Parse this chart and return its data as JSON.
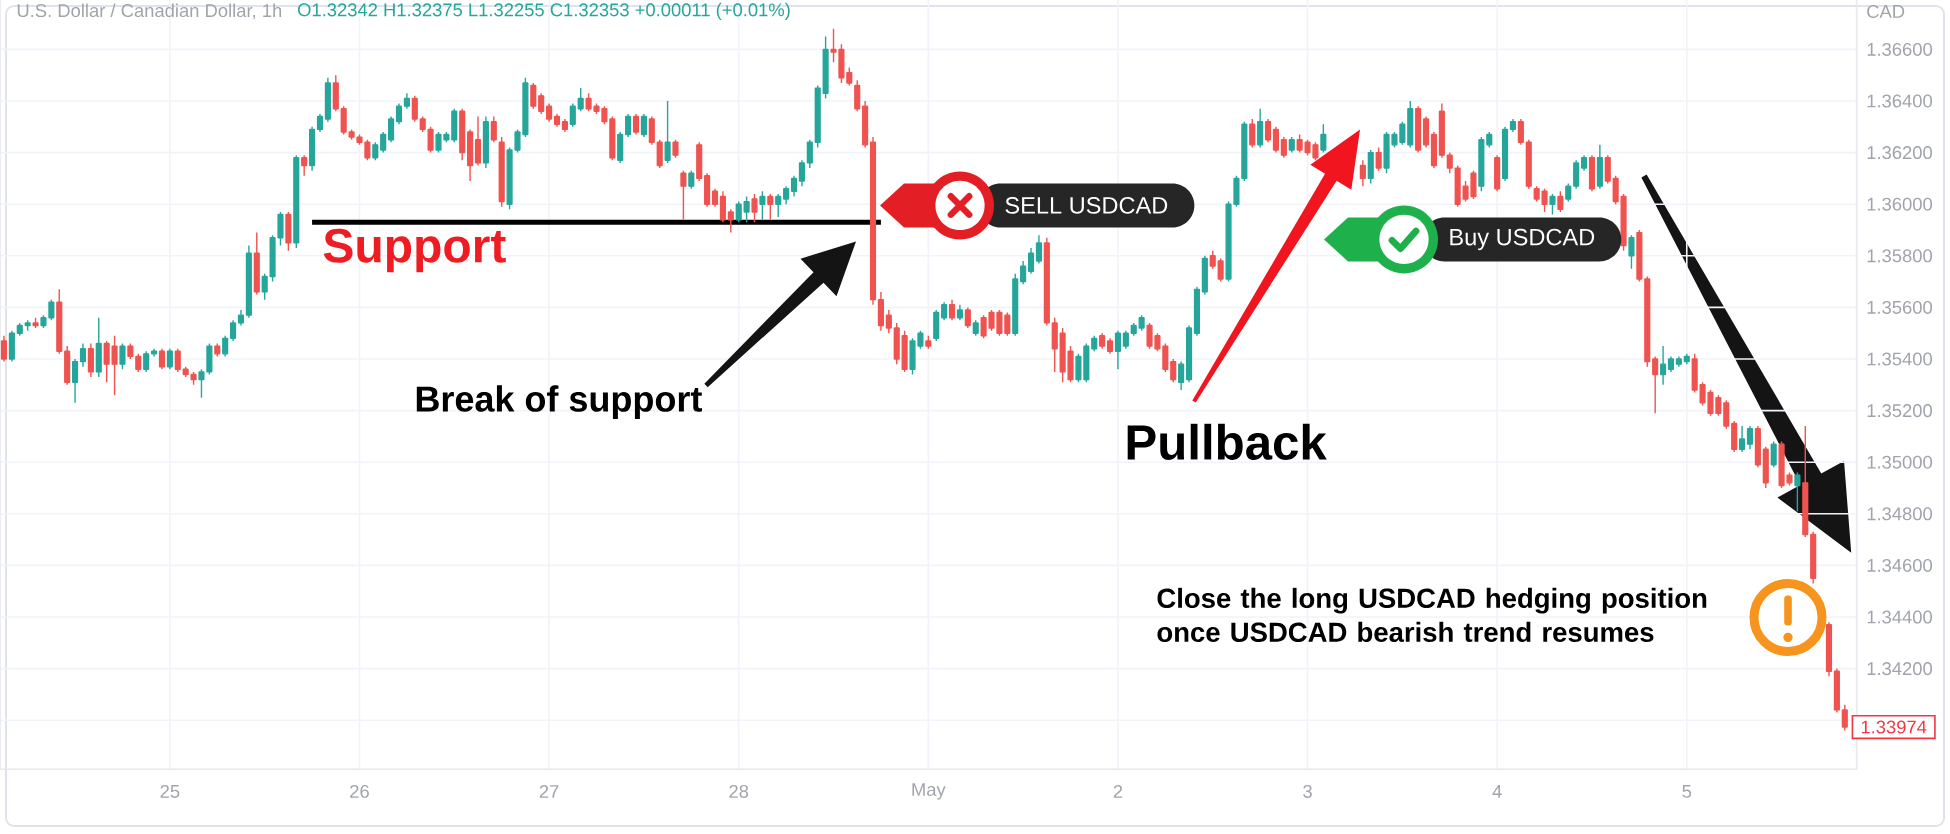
{
  "chart_data": {
    "type": "candlestick",
    "title": "U.S. Dollar / Canadian Dollar, 1h",
    "subtitle": "O1.32342 H1.32375 L1.32255 C1.32353 +0.00011 (+0.01%)",
    "ylabel": "CAD",
    "categories": [
      null,
      null,
      null,
      null,
      null,
      null,
      null,
      null,
      null,
      null,
      null,
      null,
      null,
      null,
      null,
      null,
      null,
      null,
      null,
      null,
      null,
      "25",
      null,
      null,
      null,
      null,
      null,
      null,
      null,
      null,
      null,
      null,
      null,
      null,
      null,
      null,
      null,
      null,
      null,
      null,
      null,
      null,
      null,
      null,
      null,
      "26",
      null,
      null,
      null,
      null,
      null,
      null,
      null,
      null,
      null,
      null,
      null,
      null,
      null,
      null,
      null,
      null,
      null,
      null,
      null,
      null,
      null,
      null,
      null,
      "27",
      null,
      null,
      null,
      null,
      null,
      null,
      null,
      null,
      null,
      null,
      null,
      null,
      null,
      null,
      null,
      null,
      null,
      null,
      null,
      null,
      null,
      null,
      null,
      "28",
      null,
      null,
      null,
      null,
      null,
      null,
      null,
      null,
      null,
      null,
      null,
      null,
      null,
      null,
      null,
      null,
      null,
      null,
      null,
      null,
      null,
      null,
      null,
      "May",
      null,
      null,
      null,
      null,
      null,
      null,
      null,
      null,
      null,
      null,
      null,
      null,
      null,
      null,
      null,
      null,
      null,
      null,
      null,
      null,
      null,
      null,
      null,
      "2",
      null,
      null,
      null,
      null,
      null,
      null,
      null,
      null,
      null,
      null,
      null,
      null,
      null,
      null,
      null,
      null,
      null,
      null,
      null,
      null,
      null,
      null,
      null,
      "3",
      null,
      null,
      null,
      null,
      null,
      null,
      null,
      null,
      null,
      null,
      null,
      null,
      null,
      null,
      null,
      null,
      null,
      null,
      null,
      null,
      null,
      null,
      null,
      "4",
      null,
      null,
      null,
      null,
      null,
      null,
      null,
      null,
      null,
      null,
      null,
      null,
      null,
      null,
      null,
      null,
      null,
      null,
      null,
      null,
      null,
      null,
      null,
      "5",
      null,
      null,
      null,
      null,
      null,
      null,
      null,
      null,
      null,
      null,
      null,
      null,
      null,
      null,
      null,
      null,
      null,
      null,
      null,
      null
    ],
    "ohlc": [
      [
        1.3547,
        1.3549,
        1.3539,
        1.354
      ],
      [
        1.354,
        1.3551,
        1.3539,
        1.355
      ],
      [
        1.355,
        1.3554,
        1.3549,
        1.3553
      ],
      [
        1.3553,
        1.3555,
        1.3551,
        1.3554
      ],
      [
        1.3554,
        1.3556,
        1.3552,
        1.3553
      ],
      [
        1.3553,
        1.3557,
        1.3552,
        1.3556
      ],
      [
        1.3556,
        1.3563,
        1.3555,
        1.3562
      ],
      [
        1.3562,
        1.3567,
        1.3542,
        1.3543
      ],
      [
        1.3543,
        1.3545,
        1.353,
        1.3531
      ],
      [
        1.3531,
        1.354,
        1.3523,
        1.3539
      ],
      [
        1.3539,
        1.3546,
        1.3537,
        1.3544
      ],
      [
        1.3544,
        1.3546,
        1.3533,
        1.3535
      ],
      [
        1.3535,
        1.3556,
        1.3533,
        1.3546
      ],
      [
        1.3546,
        1.3547,
        1.3531,
        1.3538
      ],
      [
        1.3545,
        1.3549,
        1.3526,
        1.3538
      ],
      [
        1.3538,
        1.3546,
        1.3536,
        1.3545
      ],
      [
        1.3545,
        1.3546,
        1.354,
        1.3541
      ],
      [
        1.3541,
        1.3542,
        1.3535,
        1.3536
      ],
      [
        1.3536,
        1.3543,
        1.3535,
        1.3542
      ],
      [
        1.3542,
        1.3544,
        1.3541,
        1.3543
      ],
      [
        1.3543,
        1.3544,
        1.3536,
        1.3537
      ],
      [
        1.3537,
        1.3544,
        1.3536,
        1.3543
      ],
      [
        1.3543,
        1.3544,
        1.3535,
        1.3536
      ],
      [
        1.3536,
        1.3537,
        1.3533,
        1.3534
      ],
      [
        1.3534,
        1.3535,
        1.353,
        1.3532
      ],
      [
        1.3532,
        1.3536,
        1.3525,
        1.3535
      ],
      [
        1.3535,
        1.3546,
        1.3534,
        1.3545
      ],
      [
        1.3545,
        1.3546,
        1.3541,
        1.3542
      ],
      [
        1.3542,
        1.3549,
        1.3541,
        1.3548
      ],
      [
        1.3548,
        1.3555,
        1.3547,
        1.3554
      ],
      [
        1.3554,
        1.3559,
        1.3553,
        1.3557
      ],
      [
        1.3557,
        1.3584,
        1.3556,
        1.3581
      ],
      [
        1.3581,
        1.3589,
        1.3565,
        1.3566
      ],
      [
        1.3566,
        1.3573,
        1.3563,
        1.3572
      ],
      [
        1.3572,
        1.3588,
        1.357,
        1.3587
      ],
      [
        1.3587,
        1.3597,
        1.3584,
        1.3596
      ],
      [
        1.3596,
        1.3597,
        1.3582,
        1.3585
      ],
      [
        1.3585,
        1.3619,
        1.3583,
        1.3618
      ],
      [
        1.3618,
        1.3619,
        1.3611,
        1.3615
      ],
      [
        1.3615,
        1.363,
        1.3613,
        1.3629
      ],
      [
        1.3629,
        1.3635,
        1.3628,
        1.3634
      ],
      [
        1.3633,
        1.3649,
        1.3632,
        1.3647
      ],
      [
        1.3647,
        1.365,
        1.3636,
        1.3637
      ],
      [
        1.3637,
        1.3638,
        1.3627,
        1.3628
      ],
      [
        1.3628,
        1.3629,
        1.3625,
        1.3626
      ],
      [
        1.3626,
        1.3627,
        1.3623,
        1.3624
      ],
      [
        1.3624,
        1.3625,
        1.3617,
        1.3618
      ],
      [
        1.3618,
        1.3624,
        1.3617,
        1.3623
      ],
      [
        1.3621,
        1.3628,
        1.362,
        1.3627
      ],
      [
        1.3625,
        1.3634,
        1.3624,
        1.3633
      ],
      [
        1.3632,
        1.3639,
        1.3631,
        1.3638
      ],
      [
        1.3638,
        1.3643,
        1.3637,
        1.3641
      ],
      [
        1.3641,
        1.3642,
        1.3632,
        1.3633
      ],
      [
        1.3633,
        1.3634,
        1.3628,
        1.3629
      ],
      [
        1.3629,
        1.363,
        1.362,
        1.3621
      ],
      [
        1.3621,
        1.3628,
        1.362,
        1.3627
      ],
      [
        1.3625,
        1.3628,
        1.3624,
        1.3627
      ],
      [
        1.3625,
        1.3637,
        1.3624,
        1.3636
      ],
      [
        1.3636,
        1.3637,
        1.3617,
        1.362
      ],
      [
        1.3628,
        1.3629,
        1.3609,
        1.3615
      ],
      [
        1.3625,
        1.3634,
        1.3615,
        1.3616
      ],
      [
        1.3616,
        1.3634,
        1.3614,
        1.3632
      ],
      [
        1.3632,
        1.3634,
        1.3624,
        1.3625
      ],
      [
        1.3624,
        1.3626,
        1.3599,
        1.3601
      ],
      [
        1.36,
        1.3622,
        1.3598,
        1.3621
      ],
      [
        1.3621,
        1.3629,
        1.362,
        1.3628
      ],
      [
        1.3627,
        1.3649,
        1.3626,
        1.3647
      ],
      [
        1.3646,
        1.3647,
        1.3637,
        1.3638
      ],
      [
        1.3642,
        1.3643,
        1.3635,
        1.3636
      ],
      [
        1.3638,
        1.3639,
        1.3632,
        1.3633
      ],
      [
        1.3634,
        1.3635,
        1.363,
        1.3631
      ],
      [
        1.3632,
        1.3633,
        1.3628,
        1.3629
      ],
      [
        1.3631,
        1.3639,
        1.363,
        1.3638
      ],
      [
        1.3637,
        1.3645,
        1.3636,
        1.3641
      ],
      [
        1.3641,
        1.3643,
        1.3636,
        1.3637
      ],
      [
        1.3638,
        1.3639,
        1.3635,
        1.3636
      ],
      [
        1.3637,
        1.3638,
        1.3631,
        1.3632
      ],
      [
        1.3633,
        1.3634,
        1.3617,
        1.3618
      ],
      [
        1.3617,
        1.3628,
        1.3616,
        1.3627
      ],
      [
        1.3627,
        1.3635,
        1.3626,
        1.3634
      ],
      [
        1.3634,
        1.3635,
        1.3627,
        1.3628
      ],
      [
        1.3627,
        1.3635,
        1.3626,
        1.3634
      ],
      [
        1.3633,
        1.3634,
        1.3623,
        1.3624
      ],
      [
        1.3624,
        1.3625,
        1.3614,
        1.3615
      ],
      [
        1.3617,
        1.364,
        1.3616,
        1.3624
      ],
      [
        1.3624,
        1.3625,
        1.3618,
        1.3619
      ],
      [
        1.3612,
        1.3613,
        1.3594,
        1.3607
      ],
      [
        1.3607,
        1.3613,
        1.3606,
        1.3612
      ],
      [
        1.3623,
        1.3624,
        1.3609,
        1.361
      ],
      [
        1.3611,
        1.3612,
        1.3599,
        1.36
      ],
      [
        1.3605,
        1.3606,
        1.3599,
        1.36
      ],
      [
        1.3603,
        1.3605,
        1.3593,
        1.3594
      ],
      [
        1.3597,
        1.3598,
        1.3589,
        1.3594
      ],
      [
        1.3594,
        1.3601,
        1.3593,
        1.36
      ],
      [
        1.3597,
        1.3603,
        1.3593,
        1.3601
      ],
      [
        1.3602,
        1.3604,
        1.3593,
        1.3597
      ],
      [
        1.36,
        1.3605,
        1.3594,
        1.3603
      ],
      [
        1.3603,
        1.3604,
        1.3594,
        1.36
      ],
      [
        1.36,
        1.3604,
        1.3595,
        1.3603
      ],
      [
        1.3602,
        1.3607,
        1.36,
        1.3606
      ],
      [
        1.3605,
        1.3611,
        1.3603,
        1.361
      ],
      [
        1.3609,
        1.3617,
        1.3607,
        1.3616
      ],
      [
        1.3616,
        1.3625,
        1.3614,
        1.3624
      ],
      [
        1.3624,
        1.3646,
        1.3622,
        1.3645
      ],
      [
        1.3643,
        1.3665,
        1.3641,
        1.366
      ],
      [
        1.366,
        1.3668,
        1.3655,
        1.3659
      ],
      [
        1.366,
        1.3662,
        1.3647,
        1.3649
      ],
      [
        1.3651,
        1.3653,
        1.3646,
        1.3647
      ],
      [
        1.3646,
        1.3648,
        1.3636,
        1.3637
      ],
      [
        1.3638,
        1.364,
        1.3622,
        1.3623
      ],
      [
        1.3624,
        1.3626,
        1.3561,
        1.3563
      ],
      [
        1.3563,
        1.3566,
        1.3551,
        1.3553
      ],
      [
        1.3557,
        1.3559,
        1.355,
        1.3552
      ],
      [
        1.3552,
        1.3554,
        1.3538,
        1.354
      ],
      [
        1.3549,
        1.3551,
        1.3535,
        1.3536
      ],
      [
        1.3536,
        1.3548,
        1.3534,
        1.3547
      ],
      [
        1.3545,
        1.3551,
        1.3544,
        1.355
      ],
      [
        1.3547,
        1.3549,
        1.3544,
        1.3545
      ],
      [
        1.3548,
        1.3559,
        1.3547,
        1.3558
      ],
      [
        1.3556,
        1.3562,
        1.3555,
        1.3561
      ],
      [
        1.3561,
        1.3563,
        1.3555,
        1.3556
      ],
      [
        1.3556,
        1.3561,
        1.3555,
        1.3559
      ],
      [
        1.3559,
        1.356,
        1.3552,
        1.3553
      ],
      [
        1.355,
        1.3555,
        1.3549,
        1.3554
      ],
      [
        1.3556,
        1.3557,
        1.3548,
        1.3549
      ],
      [
        1.3558,
        1.3559,
        1.3551,
        1.3552
      ],
      [
        1.3558,
        1.3559,
        1.3549,
        1.355
      ],
      [
        1.3557,
        1.3558,
        1.3549,
        1.355
      ],
      [
        1.355,
        1.3573,
        1.3549,
        1.3571
      ],
      [
        1.357,
        1.3578,
        1.3569,
        1.3576
      ],
      [
        1.3574,
        1.3583,
        1.3573,
        1.3581
      ],
      [
        1.3578,
        1.3588,
        1.3577,
        1.3585
      ],
      [
        1.3585,
        1.3587,
        1.3553,
        1.3554
      ],
      [
        1.3554,
        1.3556,
        1.3535,
        1.3544
      ],
      [
        1.355,
        1.3552,
        1.3531,
        1.3535
      ],
      [
        1.3543,
        1.3545,
        1.3531,
        1.3532
      ],
      [
        1.3532,
        1.3542,
        1.3531,
        1.3541
      ],
      [
        1.3532,
        1.3546,
        1.3531,
        1.3545
      ],
      [
        1.3544,
        1.3549,
        1.3543,
        1.3548
      ],
      [
        1.3549,
        1.355,
        1.3544,
        1.3545
      ],
      [
        1.3547,
        1.3548,
        1.3542,
        1.3543
      ],
      [
        1.3543,
        1.3551,
        1.3536,
        1.355
      ],
      [
        1.3545,
        1.3551,
        1.3544,
        1.355
      ],
      [
        1.355,
        1.3554,
        1.3549,
        1.3553
      ],
      [
        1.3552,
        1.3557,
        1.3551,
        1.3556
      ],
      [
        1.3553,
        1.3554,
        1.3544,
        1.3545
      ],
      [
        1.3549,
        1.355,
        1.3543,
        1.3544
      ],
      [
        1.3545,
        1.3546,
        1.3535,
        1.3536
      ],
      [
        1.3539,
        1.354,
        1.3531,
        1.3532
      ],
      [
        1.3531,
        1.3539,
        1.3528,
        1.3538
      ],
      [
        1.3532,
        1.3553,
        1.3531,
        1.3552
      ],
      [
        1.355,
        1.3568,
        1.3549,
        1.3567
      ],
      [
        1.3566,
        1.358,
        1.3565,
        1.3579
      ],
      [
        1.358,
        1.3582,
        1.3575,
        1.3576
      ],
      [
        1.3578,
        1.3579,
        1.357,
        1.3571
      ],
      [
        1.3571,
        1.3601,
        1.357,
        1.36
      ],
      [
        1.36,
        1.3611,
        1.3599,
        1.361
      ],
      [
        1.361,
        1.3632,
        1.3609,
        1.3631
      ],
      [
        1.3631,
        1.3633,
        1.3622,
        1.3623
      ],
      [
        1.3623,
        1.3637,
        1.3622,
        1.3632
      ],
      [
        1.3632,
        1.3633,
        1.3624,
        1.3625
      ],
      [
        1.3629,
        1.363,
        1.362,
        1.3621
      ],
      [
        1.3625,
        1.3626,
        1.3618,
        1.3619
      ],
      [
        1.3621,
        1.3626,
        1.362,
        1.3625
      ],
      [
        1.3625,
        1.3627,
        1.362,
        1.3621
      ],
      [
        1.3624,
        1.3625,
        1.3619,
        1.362
      ],
      [
        1.3623,
        1.3624,
        1.3617,
        1.3618
      ],
      [
        1.3621,
        1.3631,
        1.362,
        1.3627
      ],
      null,
      null,
      null,
      null,
      [
        1.3615,
        1.3617,
        1.3607,
        1.361
      ],
      [
        1.361,
        1.3621,
        1.3608,
        1.362
      ],
      [
        1.362,
        1.3622,
        1.3613,
        1.3614
      ],
      [
        1.3614,
        1.3628,
        1.3612,
        1.3627
      ],
      [
        1.3623,
        1.3628,
        1.3622,
        1.3627
      ],
      [
        1.3624,
        1.3632,
        1.3623,
        1.3631
      ],
      [
        1.3623,
        1.364,
        1.3622,
        1.3637
      ],
      [
        1.3637,
        1.3638,
        1.362,
        1.3621
      ],
      [
        1.3633,
        1.3634,
        1.3622,
        1.3623
      ],
      [
        1.3627,
        1.3628,
        1.3614,
        1.3615
      ],
      [
        1.3636,
        1.3639,
        1.3618,
        1.3619
      ],
      [
        1.3619,
        1.362,
        1.3612,
        1.3614
      ],
      [
        1.3614,
        1.3615,
        1.3599,
        1.36
      ],
      [
        1.3607,
        1.3609,
        1.3601,
        1.3602
      ],
      [
        1.3612,
        1.3613,
        1.3602,
        1.3603
      ],
      [
        1.3607,
        1.3626,
        1.3605,
        1.3625
      ],
      [
        1.3623,
        1.3628,
        1.3622,
        1.3627
      ],
      [
        1.3618,
        1.3619,
        1.3605,
        1.3606
      ],
      [
        1.361,
        1.363,
        1.3609,
        1.3629
      ],
      [
        1.3629,
        1.3633,
        1.3628,
        1.3632
      ],
      [
        1.3632,
        1.3633,
        1.3623,
        1.3624
      ],
      [
        1.3624,
        1.3625,
        1.3606,
        1.3607
      ],
      [
        1.3606,
        1.3607,
        1.3601,
        1.3602
      ],
      [
        1.3605,
        1.3606,
        1.3597,
        1.36
      ],
      [
        1.36,
        1.3604,
        1.3596,
        1.3603
      ],
      [
        1.3603,
        1.3605,
        1.3597,
        1.3598
      ],
      [
        1.3602,
        1.3608,
        1.3601,
        1.3607
      ],
      [
        1.3607,
        1.3617,
        1.3606,
        1.3616
      ],
      [
        1.3614,
        1.3619,
        1.3613,
        1.3618
      ],
      [
        1.3618,
        1.3619,
        1.3605,
        1.3606
      ],
      [
        1.3607,
        1.3623,
        1.3606,
        1.3618
      ],
      [
        1.3618,
        1.3619,
        1.3608,
        1.3609
      ],
      [
        1.361,
        1.3611,
        1.36,
        1.3601
      ],
      [
        1.3603,
        1.3604,
        1.3582,
        1.3584
      ],
      [
        1.358,
        1.3588,
        1.3575,
        1.3587
      ],
      [
        1.3589,
        1.359,
        1.357,
        1.3571
      ],
      [
        1.3571,
        1.3572,
        1.3537,
        1.3539
      ],
      [
        1.354,
        1.3541,
        1.3519,
        1.3534
      ],
      [
        1.3534,
        1.3545,
        1.353,
        1.3538
      ],
      [
        1.3536,
        1.3541,
        1.3535,
        1.354
      ],
      [
        1.3538,
        1.3541,
        1.3537,
        1.354
      ],
      [
        1.3539,
        1.3542,
        1.3538,
        1.3541
      ],
      [
        1.354,
        1.3542,
        1.3527,
        1.3528
      ],
      [
        1.353,
        1.3531,
        1.3522,
        1.3523
      ],
      [
        1.3527,
        1.3528,
        1.3518,
        1.3519
      ],
      [
        1.3525,
        1.3526,
        1.3518,
        1.3519
      ],
      [
        1.3523,
        1.3524,
        1.3513,
        1.3514
      ],
      [
        1.3515,
        1.3516,
        1.3504,
        1.3505
      ],
      [
        1.3505,
        1.3514,
        1.3504,
        1.3509
      ],
      [
        1.3507,
        1.3514,
        1.3505,
        1.3513
      ],
      [
        1.3513,
        1.3514,
        1.3498,
        1.3499
      ],
      [
        1.3505,
        1.3506,
        1.349,
        1.3492
      ],
      [
        1.3499,
        1.3508,
        1.3498,
        1.3507
      ],
      [
        1.3507,
        1.3508,
        1.349,
        1.3491
      ],
      [
        1.3495,
        1.3496,
        1.3491,
        1.3492
      ],
      [
        1.3491,
        1.3496,
        1.3481,
        1.3495
      ],
      [
        1.3492,
        1.3514,
        1.3471,
        1.3472
      ],
      [
        1.3472,
        1.3473,
        1.3453,
        1.3455
      ],
      null,
      [
        1.3437,
        1.3438,
        1.3417,
        1.3419
      ],
      [
        1.3419,
        1.342,
        1.3403,
        1.3404
      ],
      [
        1.3404,
        1.3406,
        1.3396,
        1.33974
      ]
    ],
    "colors": [
      "#ef5350",
      "#26a69a",
      "#26a69a",
      "#26a69a",
      "#ef5350",
      "#26a69a",
      "#26a69a",
      "#ef5350",
      "#ef5350",
      "#26a69a",
      "#26a69a",
      "#ef5350",
      "#26a69a",
      "#ef5350",
      "#ef5350",
      "#26a69a",
      "#ef5350",
      "#ef5350",
      "#26a69a",
      "#26a69a",
      "#ef5350",
      "#26a69a",
      "#ef5350",
      "#ef5350",
      "#ef5350",
      "#26a69a",
      "#26a69a",
      "#ef5350",
      "#26a69a",
      "#26a69a",
      "#26a69a",
      "#26a69a",
      "#ef5350",
      "#26a69a",
      "#26a69a",
      "#26a69a",
      "#ef5350",
      "#26a69a",
      "#ef5350",
      "#26a69a",
      "#26a69a",
      "#26a69a",
      "#ef5350",
      "#ef5350",
      "#ef5350",
      "#ef5350",
      "#ef5350",
      "#26a69a",
      "#26a69a",
      "#26a69a",
      "#26a69a",
      "#26a69a",
      "#ef5350",
      "#ef5350",
      "#ef5350",
      "#26a69a",
      "#26a69a",
      "#26a69a",
      "#ef5350",
      "#ef5350",
      "#ef5350",
      "#26a69a",
      "#ef5350",
      "#ef5350",
      "#26a69a",
      "#26a69a",
      "#26a69a",
      "#ef5350",
      "#ef5350",
      "#ef5350",
      "#ef5350",
      "#ef5350",
      "#26a69a",
      "#26a69a",
      "#ef5350",
      "#ef5350",
      "#ef5350",
      "#ef5350",
      "#26a69a",
      "#26a69a",
      "#ef5350",
      "#26a69a",
      "#ef5350",
      "#ef5350",
      "#26a69a",
      "#ef5350",
      "#ef5350",
      "#26a69a",
      "#ef5350",
      "#ef5350",
      "#ef5350",
      "#ef5350",
      "#ef5350",
      "#26a69a",
      "#26a69a",
      "#ef5350",
      "#26a69a",
      "#ef5350",
      "#26a69a",
      "#26a69a",
      "#26a69a",
      "#26a69a",
      "#26a69a",
      "#26a69a",
      "#26a69a",
      "#ef5350",
      "#ef5350",
      "#ef5350",
      "#ef5350",
      "#ef5350",
      "#ef5350",
      "#ef5350",
      "#ef5350",
      "#ef5350",
      "#ef5350",
      "#26a69a",
      "#26a69a",
      "#ef5350",
      "#26a69a",
      "#26a69a",
      "#ef5350",
      "#26a69a",
      "#ef5350",
      "#26a69a",
      "#ef5350",
      "#ef5350",
      "#ef5350",
      "#ef5350",
      "#26a69a",
      "#26a69a",
      "#26a69a",
      "#26a69a",
      "#ef5350",
      "#ef5350",
      "#ef5350",
      "#ef5350",
      "#26a69a",
      "#26a69a",
      "#26a69a",
      "#ef5350",
      "#ef5350",
      "#26a69a",
      "#26a69a",
      "#26a69a",
      "#26a69a",
      "#ef5350",
      "#ef5350",
      "#ef5350",
      "#ef5350",
      "#26a69a",
      "#26a69a",
      "#26a69a",
      "#26a69a",
      "#ef5350",
      "#ef5350",
      "#26a69a",
      "#26a69a",
      "#26a69a",
      "#ef5350",
      "#26a69a",
      "#ef5350",
      "#ef5350",
      "#ef5350",
      "#26a69a",
      "#ef5350",
      "#ef5350",
      "#ef5350",
      "#26a69a",
      null,
      null,
      null,
      null,
      "#ef5350",
      "#26a69a",
      "#ef5350",
      "#26a69a",
      "#26a69a",
      "#26a69a",
      "#26a69a",
      "#ef5350",
      "#ef5350",
      "#ef5350",
      "#ef5350",
      "#ef5350",
      "#ef5350",
      "#ef5350",
      "#ef5350",
      "#26a69a",
      "#26a69a",
      "#ef5350",
      "#26a69a",
      "#26a69a",
      "#ef5350",
      "#ef5350",
      "#ef5350",
      "#ef5350",
      "#26a69a",
      "#ef5350",
      "#26a69a",
      "#26a69a",
      "#26a69a",
      "#ef5350",
      "#26a69a",
      "#ef5350",
      "#ef5350",
      "#ef5350",
      "#26a69a",
      "#ef5350",
      "#ef5350",
      "#ef5350",
      "#26a69a",
      "#26a69a",
      "#26a69a",
      "#26a69a",
      "#ef5350",
      "#ef5350",
      "#ef5350",
      "#ef5350",
      "#ef5350",
      "#ef5350",
      "#26a69a",
      "#26a69a",
      "#ef5350",
      "#ef5350",
      "#26a69a",
      "#ef5350",
      "#ef5350",
      "#26a69a",
      "#ef5350",
      "#ef5350",
      null,
      "#ef5350",
      "#ef5350",
      "#ef5350"
    ],
    "series": [
      {
        "type": "line",
        "color": "#000000",
        "values": [
          null,
          null,
          null,
          null,
          null,
          null,
          null,
          null,
          null,
          null,
          null,
          null,
          null,
          null,
          null,
          null,
          null,
          null,
          null,
          null,
          null,
          null,
          null,
          null,
          null,
          null,
          null,
          null,
          null,
          null,
          null,
          null,
          null,
          null,
          null,
          null,
          null,
          null,
          null,
          1.3593,
          1.3593,
          1.3593,
          1.3593,
          1.3593,
          1.3593,
          1.3593,
          1.3593,
          1.3593,
          1.3593,
          1.3593,
          1.3593,
          1.3593,
          1.3593,
          1.3593,
          1.3593,
          1.3593,
          1.3593,
          1.3593,
          1.3593,
          1.3593,
          1.3593,
          1.3593,
          1.3593,
          1.3593,
          1.3593,
          1.3593,
          1.3593,
          1.3593,
          1.3593,
          1.3593,
          1.3593,
          1.3593,
          1.3593,
          1.3593,
          1.3593,
          1.3593,
          1.3593,
          1.3593,
          1.3593,
          1.3593,
          1.3593,
          1.3593,
          1.3593,
          1.3593,
          1.3593,
          1.3593,
          1.3593,
          1.3593,
          1.3593,
          1.3593,
          1.3593,
          1.3593,
          1.3593,
          1.3593,
          1.3593,
          1.3593,
          1.3593,
          1.3593,
          1.3593,
          1.3593,
          1.3593,
          1.3593,
          1.3593,
          1.3593,
          1.3593,
          1.3593,
          1.3593,
          1.3593,
          1.3593,
          1.3593,
          1.3593,
          1.3593,
          null,
          null,
          null,
          null,
          null,
          null,
          null,
          null,
          null,
          null,
          null,
          null,
          null,
          null,
          null,
          null,
          null,
          null,
          null,
          null,
          null,
          null,
          null,
          null,
          null,
          null,
          null,
          null,
          null,
          null,
          null,
          null,
          null,
          null,
          null,
          null,
          null,
          null,
          null,
          null,
          null,
          null,
          null,
          null,
          null,
          null,
          null,
          null,
          null,
          null,
          null,
          null,
          null,
          null,
          null,
          null,
          null,
          null,
          null,
          null,
          null,
          null,
          null,
          null,
          null,
          null,
          null,
          null,
          null,
          null,
          null,
          null,
          null,
          null,
          null,
          null,
          null,
          null,
          null,
          null,
          null,
          null,
          null,
          null,
          null,
          null,
          null,
          null,
          null,
          null,
          null,
          null,
          null,
          null,
          null,
          null,
          null,
          null,
          null,
          null,
          null,
          null,
          null,
          null,
          null,
          null,
          null,
          null,
          null,
          null,
          null,
          null,
          null,
          null,
          null,
          null,
          null,
          null,
          null,
          null,
          null,
          null
        ]
      }
    ],
    "annotations": [
      {
        "text": "Support",
        "y": 1.3593
      },
      "Break of support",
      "SELL USDCAD",
      "Pullback",
      "Buy USDCAD",
      "Close the long USDCAD hedging position once USDCAD bearish trend resumes",
      "1.33974"
    ],
    "grid": true,
    "ylim": [
      1.3381,
      1.3682
    ],
    "yticks": [
      {
        "value": 1.34,
        "label": null
      },
      {
        "value": 1.342,
        "label": "1.34200"
      },
      {
        "value": 1.344,
        "label": "1.34400"
      },
      {
        "value": 1.346,
        "label": "1.34600"
      },
      {
        "value": 1.348,
        "label": "1.34800"
      },
      {
        "value": 1.35,
        "label": "1.35000"
      },
      {
        "value": 1.352,
        "label": "1.35200"
      },
      {
        "value": 1.354,
        "label": "1.35400"
      },
      {
        "value": 1.356,
        "label": "1.35600"
      },
      {
        "value": 1.358,
        "label": "1.35800"
      },
      {
        "value": 1.36,
        "label": "1.36000"
      },
      {
        "value": 1.362,
        "label": "1.36200"
      },
      {
        "value": 1.364,
        "label": "1.36400"
      },
      {
        "value": 1.366,
        "label": "1.36600"
      }
    ]
  }
}
